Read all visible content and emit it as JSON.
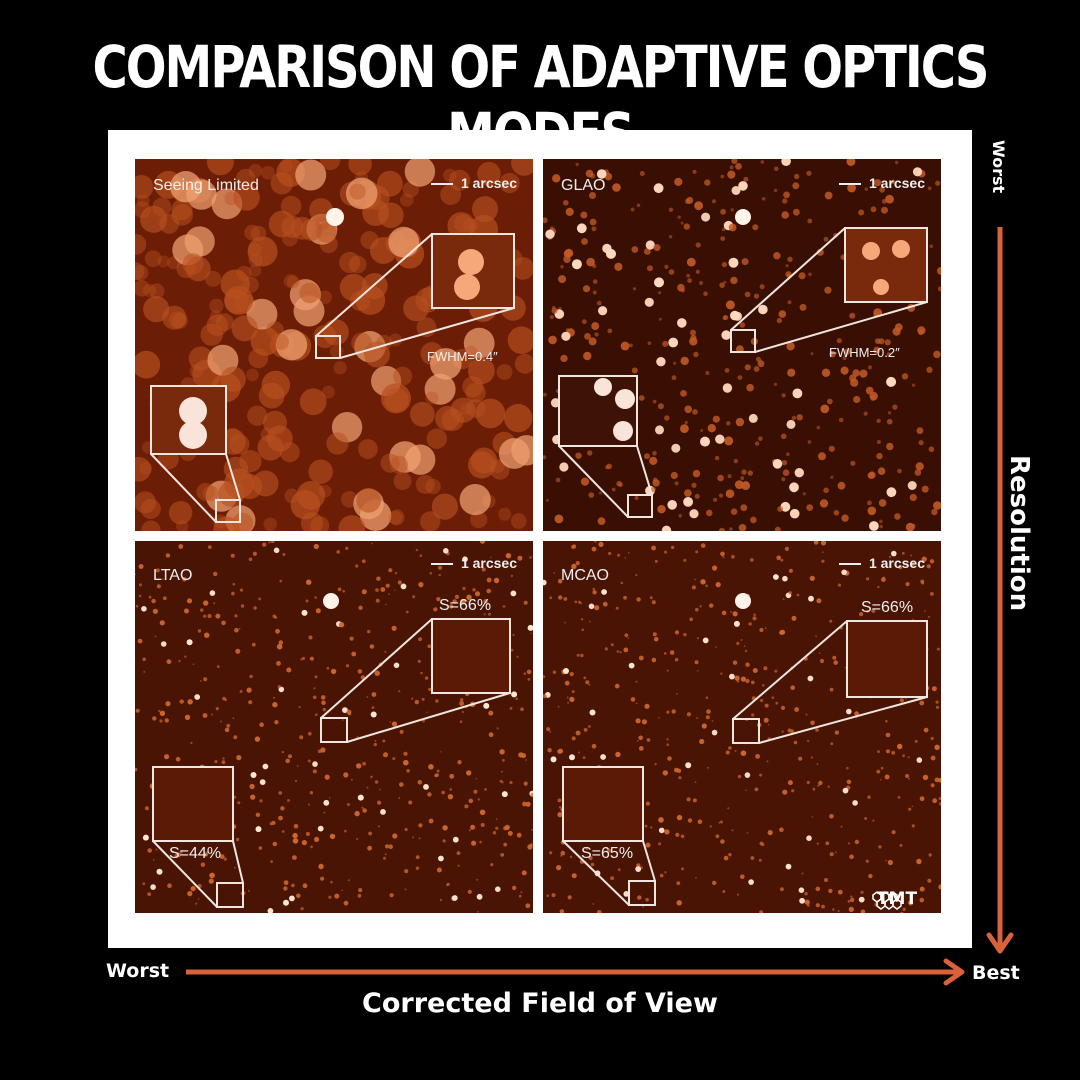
{
  "title": "COMPARISON OF ADAPTIVE OPTICS MODES",
  "colors": {
    "accent": "#d9623a",
    "background": "#000000",
    "frame": "#ffffff",
    "field": "#6b1d06"
  },
  "panels": [
    {
      "label": "Seeing Limited",
      "scale": "1 arcsec",
      "note": "FWHM=0.4″",
      "note2": ""
    },
    {
      "label": "GLAO",
      "scale": "1 arcsec",
      "note": "FWHM=0.2″",
      "note2": ""
    },
    {
      "label": "LTAO",
      "scale": "1 arcsec",
      "note": "S=66%",
      "note2": "S=44%"
    },
    {
      "label": "MCAO",
      "scale": "1 arcsec",
      "note": "S=66%",
      "note2": "S=65%"
    }
  ],
  "axes": {
    "vertical": {
      "label": "Resolution",
      "top": "Worst",
      "bottom": "Best"
    },
    "horizontal": {
      "label": "Corrected Field of View",
      "left": "Worst",
      "right": "Best"
    }
  },
  "logo": {
    "text": "TMT",
    "icon": "hexagon-cluster-icon"
  }
}
